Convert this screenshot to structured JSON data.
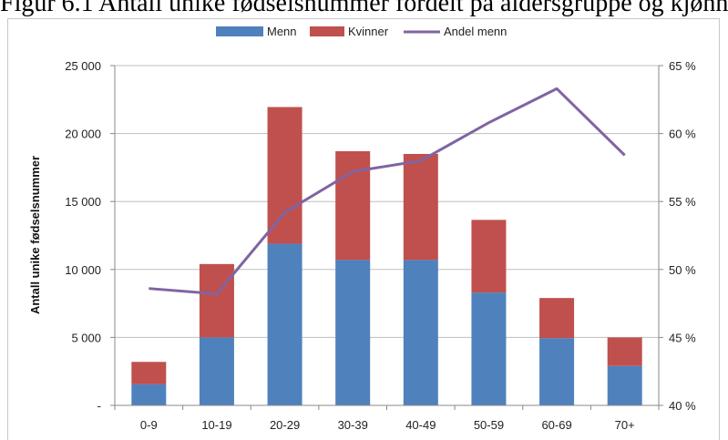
{
  "caption": "Figur 6.1 Antall unike fødselsnummer fordelt på aldersgruppe og kjønn",
  "chart_data": {
    "type": "bar",
    "stacked": true,
    "categories": [
      "0-9",
      "10-19",
      "20-29",
      "30-39",
      "40-49",
      "50-59",
      "60-69",
      "70+"
    ],
    "series": [
      {
        "name": "Menn",
        "type": "bar",
        "axis": "left",
        "color": "#4f81bd",
        "values": [
          1550,
          5000,
          11900,
          10700,
          10700,
          8300,
          4950,
          2900
        ]
      },
      {
        "name": "Kvinner",
        "type": "bar",
        "axis": "left",
        "color": "#c0504d",
        "values": [
          1650,
          5400,
          10050,
          8000,
          7800,
          5350,
          2950,
          2100
        ]
      },
      {
        "name": "Andel menn",
        "type": "line",
        "axis": "right",
        "color": "#8064a2",
        "values": [
          48.6,
          48.2,
          54.2,
          57.2,
          58.0,
          60.8,
          63.3,
          58.4
        ]
      }
    ],
    "ylabel": "Antall unike fødselsnummer",
    "ylim": [
      0,
      25000
    ],
    "y_ticks": [
      "-",
      "5 000",
      "10 000",
      "15 000",
      "20 000",
      "25 000"
    ],
    "y2lim": [
      40,
      65
    ],
    "y2_ticks": [
      "40 %",
      "45 %",
      "50 %",
      "55 %",
      "60 %",
      "65 %"
    ],
    "legend": {
      "placement": "top-center",
      "entries": [
        "Menn",
        "Kvinner",
        "Andel menn"
      ]
    },
    "grid": "horizontal"
  }
}
